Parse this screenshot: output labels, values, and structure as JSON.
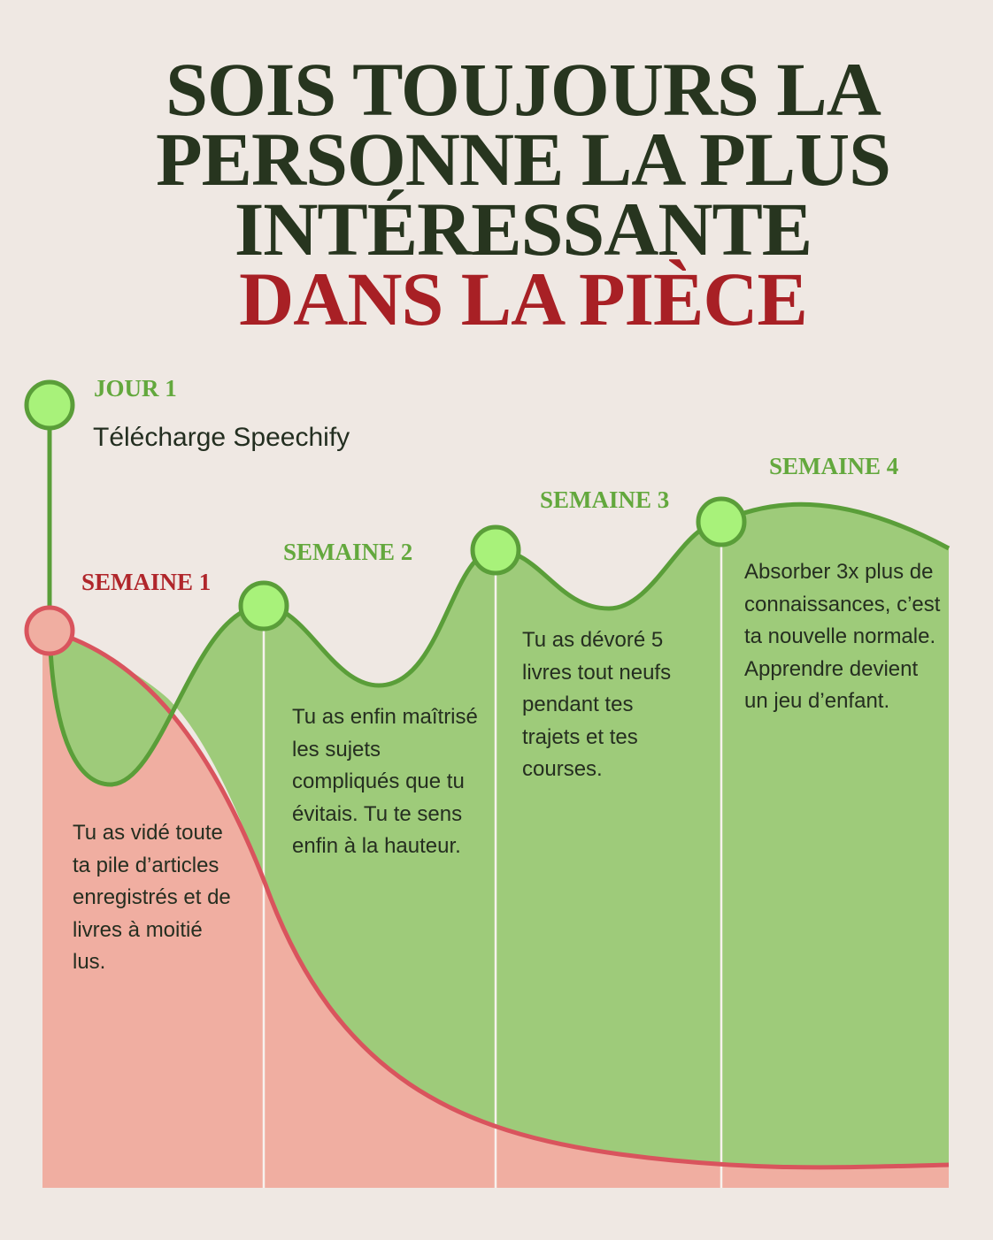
{
  "title": {
    "line1": "SOIS TOUJOURS LA",
    "line2": "PERSONNE LA PLUS",
    "line3": "INTÉRESSANTE",
    "line4": "DANS LA PIÈCE"
  },
  "colors": {
    "title_dark": "#27351f",
    "accent_red": "#a82025",
    "green_line": "#5a9e39",
    "green_fill": "#9ecb7a",
    "red_line": "#d9545d",
    "red_fill": "#f0aea1",
    "marker_green": "#a8f27a",
    "background": "#efe8e3"
  },
  "stages": [
    {
      "label": "JOUR 1",
      "subtitle": "Télécharge Speechify",
      "color": "green"
    },
    {
      "label": "SEMAINE 1",
      "description": "Tu as vidé toute ta pile d’articles enregistrés et de livres à moitié lus.",
      "color": "red"
    },
    {
      "label": "SEMAINE 2",
      "description": "Tu as enfin maîtrisé les sujets compliqués que tu évitais. Tu te sens enfin à la hauteur.",
      "color": "green"
    },
    {
      "label": "SEMAINE 3",
      "description": "Tu as dévoré 5 livres tout neufs pendant tes trajets et tes courses.",
      "color": "green"
    },
    {
      "label": "SEMAINE 4",
      "description": "Absorber 3x plus de connaissances, c’est ta nouvelle normale. Apprendre devient un jeu d’enfant.",
      "color": "green"
    }
  ]
}
